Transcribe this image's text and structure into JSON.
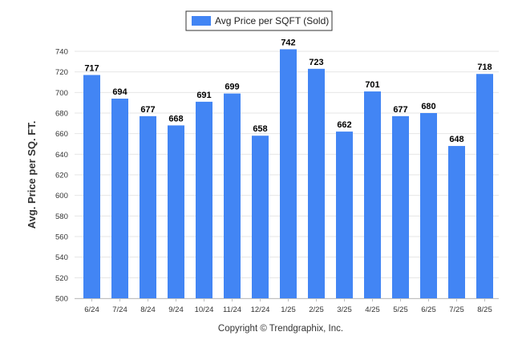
{
  "chart_data": {
    "type": "bar",
    "categories": [
      "6/24",
      "7/24",
      "8/24",
      "9/24",
      "10/24",
      "11/24",
      "12/24",
      "1/25",
      "2/25",
      "3/25",
      "4/25",
      "5/25",
      "6/25",
      "7/25",
      "8/25"
    ],
    "series": [
      {
        "name": "Avg Price per SQFT (Sold)",
        "values": [
          717,
          694,
          677,
          668,
          691,
          699,
          658,
          742,
          723,
          662,
          701,
          677,
          680,
          648,
          718
        ],
        "color": "#4285f4"
      }
    ],
    "xlabel": "",
    "ylabel": "Avg. Price per SQ. FT.",
    "ylim": [
      500,
      740
    ],
    "yticks": [
      500,
      520,
      540,
      560,
      580,
      600,
      620,
      640,
      660,
      680,
      700,
      720,
      740
    ],
    "data_labels": true,
    "grid": true,
    "legend": "top-center"
  },
  "footer": {
    "copyright": "Copyright © Trendgraphix, Inc."
  }
}
